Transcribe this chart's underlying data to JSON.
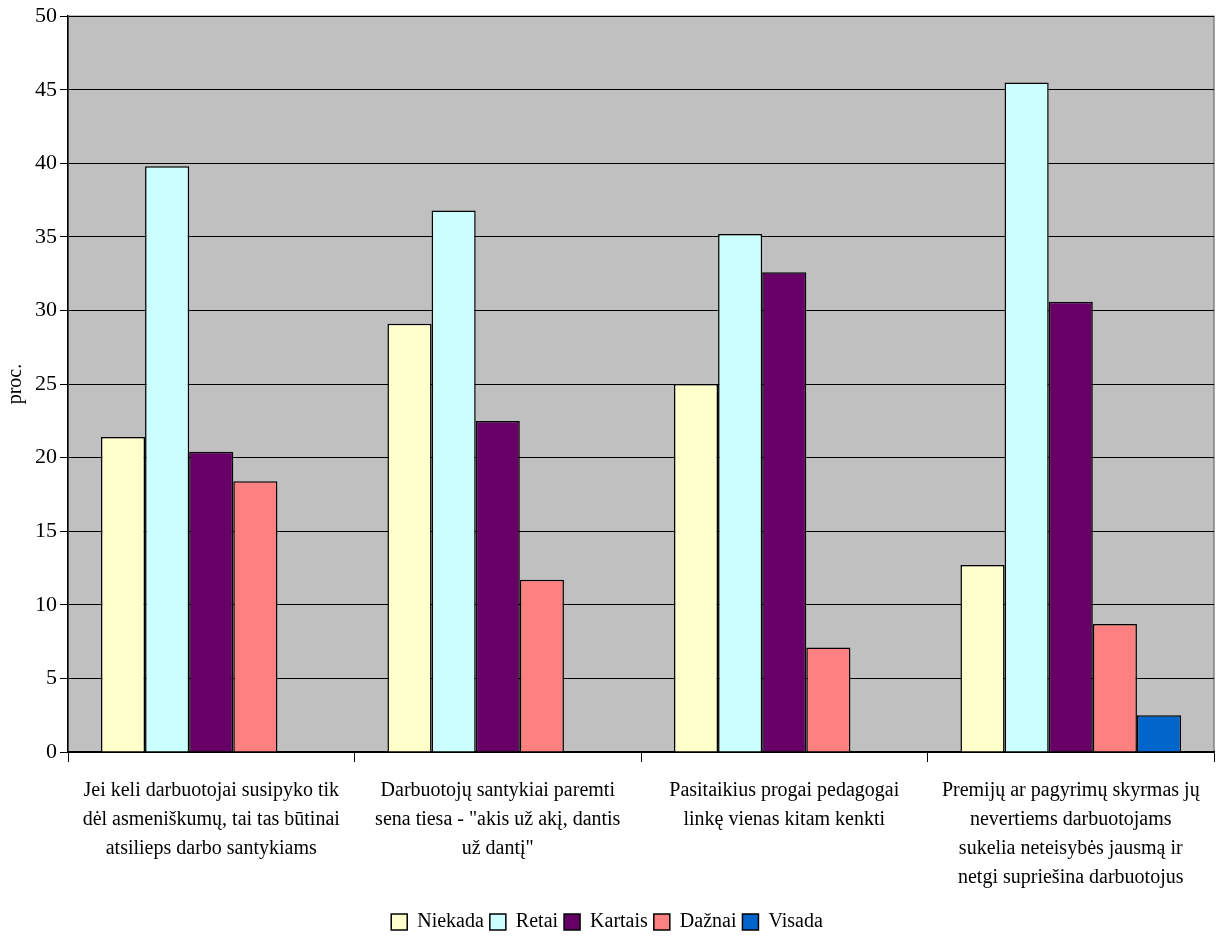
{
  "chart_data": {
    "type": "bar",
    "ylabel": "proc.",
    "categories": [
      "Jei keli darbuotojai susipyko tik dėl asmeniškumų, tai tas būtinai atsilieps darbo santykiams",
      "Darbuotojų santykiai paremti sena tiesa - \"akis už akį, dantis už dantį\"",
      "Pasitaikius progai pedagogai linkę vienas kitam kenkti",
      "Premijų ar pagyrimų skyrmas jų nevertiems darbuotojams sukelia neteisybės jausmą ir netgi supriešina darbuotojus"
    ],
    "series": [
      {
        "name": "Niekada",
        "color": "#ffffcc",
        "values": [
          21.4,
          29.1,
          25.0,
          12.7
        ]
      },
      {
        "name": "Retai",
        "color": "#ccffff",
        "values": [
          39.8,
          36.8,
          35.2,
          45.5
        ]
      },
      {
        "name": "Kartais",
        "color": "#660066",
        "values": [
          20.4,
          22.5,
          32.6,
          30.6
        ]
      },
      {
        "name": "Dažnai",
        "color": "#ff8080",
        "values": [
          18.4,
          11.7,
          7.1,
          8.7
        ]
      },
      {
        "name": "Visada",
        "color": "#0066cc",
        "values": [
          null,
          null,
          null,
          2.5
        ]
      }
    ],
    "ylim": [
      0,
      50
    ],
    "yticks": [
      0,
      5,
      10,
      15,
      20,
      25,
      30,
      35,
      40,
      45,
      50
    ],
    "grid": "y",
    "legend": "bottom"
  }
}
